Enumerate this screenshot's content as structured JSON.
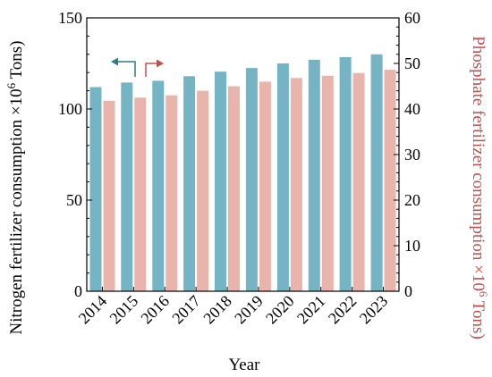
{
  "chart_data": {
    "type": "bar",
    "categories": [
      "2014",
      "2015",
      "2016",
      "2017",
      "2018",
      "2019",
      "2020",
      "2021",
      "2022",
      "2023"
    ],
    "series": [
      {
        "values": [
          112,
          114.5,
          115.5,
          118,
          120.5,
          122.5,
          125,
          127,
          128.5,
          130
        ],
        "color": "#74b4c4",
        "axis": "left"
      },
      {
        "values": [
          41.8,
          42.5,
          43,
          44,
          45,
          46,
          46.8,
          47.3,
          47.9,
          48.6
        ],
        "color": "#e8b4ac",
        "axis": "right"
      }
    ],
    "xlabel": "Year",
    "ylabel_left": "Nitrogen fertilizer consumption ×10",
    "ylabel_left_sup": "6",
    "ylabel_left_unit": " Tons)",
    "ylabel_right": "Phosphate fertilizer consumption ×10",
    "ylabel_right_sup": "6",
    "ylabel_right_unit": " Tons)",
    "ylim_left": [
      0,
      150
    ],
    "ylim_right": [
      0,
      60
    ],
    "yticks_left": [
      "0",
      "50",
      "100",
      "150"
    ],
    "yticks_right": [
      "0",
      "10",
      "20",
      "30",
      "40",
      "50",
      "60"
    ],
    "grid": false,
    "legend": "arrows near top-left: left arrow marks the left axis series, right arrow marks the right axis series",
    "colors": {
      "left_axis_text": "#000000",
      "right_axis_text": "#c0504d",
      "left_arrow": "#2e7a8c",
      "right_arrow": "#c0504d"
    }
  }
}
